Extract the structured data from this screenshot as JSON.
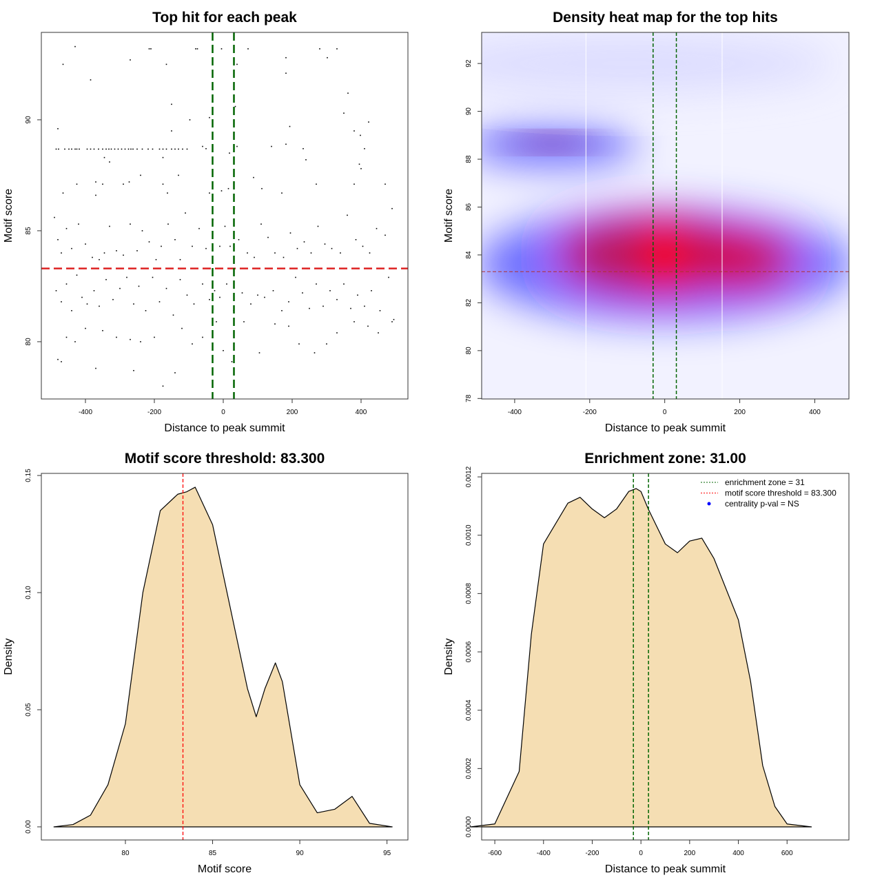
{
  "chart_data": [
    {
      "type": "scatter",
      "title": "Top hit for each peak",
      "xlabel": "Distance to peak summit",
      "ylabel": "Motif score",
      "xlim": [
        -528,
        536
      ],
      "ylim": [
        77.42,
        93.94
      ],
      "xticks": [
        -400,
        -200,
        0,
        200,
        400
      ],
      "yticks": [
        80,
        85,
        90
      ],
      "threshold": 83.3,
      "enrichment_zone": [
        -31,
        31
      ],
      "threshold_color": "#dd2222",
      "zone_color": "#006400",
      "points": [
        [
          -430,
          93.3
        ],
        [
          -215,
          93.2
        ],
        [
          -210,
          93.2
        ],
        [
          -75,
          93.2
        ],
        [
          -80,
          93.2
        ],
        [
          -5,
          93.2
        ],
        [
          72,
          93.2
        ],
        [
          280,
          93.2
        ],
        [
          330,
          93.2
        ],
        [
          -270,
          92.7
        ],
        [
          -465,
          92.5
        ],
        [
          -165,
          92.5
        ],
        [
          40,
          92.5
        ],
        [
          182,
          92.8
        ],
        [
          302,
          92.8
        ],
        [
          182,
          92.1
        ],
        [
          -385,
          91.8
        ],
        [
          362,
          91.2
        ],
        [
          -150,
          90.7
        ],
        [
          350,
          90.3
        ],
        [
          -97,
          90
        ],
        [
          -40,
          90.1
        ],
        [
          35,
          90.6
        ],
        [
          193,
          89.7
        ],
        [
          -480,
          89.6
        ],
        [
          -150,
          89.5
        ],
        [
          380,
          89.5
        ],
        [
          398,
          89.3
        ],
        [
          422,
          89.9
        ],
        [
          182,
          88.9
        ],
        [
          -60,
          88.8
        ],
        [
          -50,
          88.7
        ],
        [
          40,
          88.8
        ],
        [
          140,
          88.8
        ],
        [
          232,
          88.7
        ],
        [
          410,
          88.7
        ],
        [
          -345,
          88.3
        ],
        [
          -330,
          88.1
        ],
        [
          -175,
          88.3
        ],
        [
          18,
          88.5
        ],
        [
          240,
          88.2
        ],
        [
          395,
          88.0
        ],
        [
          400,
          87.8
        ],
        [
          -240,
          87.5
        ],
        [
          -130,
          87.5
        ],
        [
          88,
          87.4
        ],
        [
          -425,
          87.1
        ],
        [
          -370,
          87.2
        ],
        [
          -290,
          87.1
        ],
        [
          -273,
          87.2
        ],
        [
          -175,
          87.1
        ],
        [
          -350,
          87.1
        ],
        [
          270,
          87.1
        ],
        [
          380,
          87.1
        ],
        [
          470,
          87.1
        ],
        [
          112,
          86.9
        ],
        [
          -5,
          86.8
        ],
        [
          15,
          86.9
        ],
        [
          -465,
          86.7
        ],
        [
          -370,
          86.6
        ],
        [
          -162,
          86.7
        ],
        [
          170,
          86.7
        ],
        [
          -40,
          86.7
        ],
        [
          -485,
          88.68
        ],
        [
          -478,
          88.68
        ],
        [
          -460,
          88.68
        ],
        [
          -448,
          88.68
        ],
        [
          -440,
          88.68
        ],
        [
          -430,
          88.68
        ],
        [
          -425,
          88.68
        ],
        [
          -418,
          88.68
        ],
        [
          -395,
          88.68
        ],
        [
          -385,
          88.68
        ],
        [
          -375,
          88.68
        ],
        [
          -362,
          88.68
        ],
        [
          -350,
          88.68
        ],
        [
          -340,
          88.68
        ],
        [
          -332,
          88.68
        ],
        [
          -325,
          88.68
        ],
        [
          -315,
          88.68
        ],
        [
          -305,
          88.68
        ],
        [
          -295,
          88.68
        ],
        [
          -285,
          88.68
        ],
        [
          -275,
          88.68
        ],
        [
          -268,
          88.68
        ],
        [
          -262,
          88.68
        ],
        [
          -250,
          88.68
        ],
        [
          -235,
          88.68
        ],
        [
          -218,
          88.68
        ],
        [
          -205,
          88.68
        ],
        [
          -185,
          88.68
        ],
        [
          -175,
          88.68
        ],
        [
          -165,
          88.68
        ],
        [
          -150,
          88.68
        ],
        [
          -140,
          88.68
        ],
        [
          -130,
          88.68
        ],
        [
          -118,
          88.68
        ],
        [
          -105,
          88.68
        ],
        [
          -490,
          85.6
        ],
        [
          -480,
          84.6
        ],
        [
          -470,
          84.0
        ],
        [
          -455,
          85.1
        ],
        [
          -440,
          84.2
        ],
        [
          -420,
          85.3
        ],
        [
          -400,
          84.4
        ],
        [
          -380,
          83.8
        ],
        [
          -360,
          83.7
        ],
        [
          -345,
          84.0
        ],
        [
          -330,
          85.2
        ],
        [
          -310,
          84.1
        ],
        [
          -290,
          83.9
        ],
        [
          -270,
          85.3
        ],
        [
          -250,
          84.1
        ],
        [
          -235,
          85.0
        ],
        [
          -215,
          84.5
        ],
        [
          -195,
          83.7
        ],
        [
          -180,
          84.3
        ],
        [
          -160,
          85.3
        ],
        [
          -140,
          84.6
        ],
        [
          -125,
          83.7
        ],
        [
          -110,
          85.8
        ],
        [
          -90,
          84.3
        ],
        [
          -70,
          85.1
        ],
        [
          -50,
          84.2
        ],
        [
          -30,
          85.5
        ],
        [
          -10,
          84.3
        ],
        [
          5,
          85.2
        ],
        [
          20,
          84.3
        ],
        [
          45,
          84.6
        ],
        [
          70,
          84.0
        ],
        [
          90,
          83.8
        ],
        [
          110,
          85.3
        ],
        [
          130,
          84.7
        ],
        [
          150,
          84.0
        ],
        [
          175,
          83.8
        ],
        [
          195,
          84.9
        ],
        [
          215,
          84.2
        ],
        [
          235,
          84.5
        ],
        [
          255,
          84.0
        ],
        [
          275,
          85.2
        ],
        [
          295,
          84.4
        ],
        [
          315,
          84.2
        ],
        [
          340,
          84.0
        ],
        [
          360,
          85.7
        ],
        [
          385,
          84.6
        ],
        [
          405,
          84.3
        ],
        [
          425,
          84.0
        ],
        [
          445,
          85.1
        ],
        [
          470,
          84.8
        ],
        [
          490,
          86.0
        ],
        [
          -485,
          82.3
        ],
        [
          -470,
          81.8
        ],
        [
          -455,
          82.6
        ],
        [
          -440,
          81.4
        ],
        [
          -425,
          83.0
        ],
        [
          -410,
          82.0
        ],
        [
          -395,
          81.7
        ],
        [
          -375,
          82.3
        ],
        [
          -360,
          81.6
        ],
        [
          -340,
          82.8
        ],
        [
          -320,
          81.9
        ],
        [
          -300,
          82.4
        ],
        [
          -280,
          82.9
        ],
        [
          -260,
          81.7
        ],
        [
          -245,
          82.5
        ],
        [
          -225,
          81.4
        ],
        [
          -205,
          82.9
        ],
        [
          -185,
          81.8
        ],
        [
          -165,
          82.4
        ],
        [
          -145,
          81.2
        ],
        [
          -125,
          82.8
        ],
        [
          -105,
          82.1
        ],
        [
          -85,
          81.7
        ],
        [
          -60,
          82.6
        ],
        [
          -40,
          81.9
        ],
        [
          -25,
          82.3
        ],
        [
          -10,
          82.0
        ],
        [
          10,
          82.6
        ],
        [
          30,
          81.4
        ],
        [
          55,
          82.2
        ],
        [
          80,
          81.7
        ],
        [
          100,
          82.1
        ],
        [
          120,
          82.0
        ],
        [
          145,
          82.3
        ],
        [
          170,
          81.4
        ],
        [
          190,
          81.8
        ],
        [
          210,
          82.9
        ],
        [
          230,
          82.2
        ],
        [
          250,
          81.5
        ],
        [
          270,
          82.6
        ],
        [
          290,
          81.6
        ],
        [
          310,
          82.3
        ],
        [
          330,
          81.9
        ],
        [
          350,
          82.6
        ],
        [
          370,
          81.5
        ],
        [
          390,
          82.1
        ],
        [
          410,
          81.6
        ],
        [
          430,
          82.3
        ],
        [
          455,
          81.4
        ],
        [
          480,
          82.9
        ],
        [
          495,
          81.0
        ],
        [
          -480,
          79.2
        ],
        [
          -470,
          79.1
        ],
        [
          -455,
          80.2
        ],
        [
          -430,
          80.0
        ],
        [
          -400,
          80.6
        ],
        [
          -370,
          78.8
        ],
        [
          -350,
          80.5
        ],
        [
          -310,
          80.2
        ],
        [
          -270,
          80.1
        ],
        [
          -260,
          78.7
        ],
        [
          -240,
          80.0
        ],
        [
          -200,
          80.2
        ],
        [
          -175,
          78.0
        ],
        [
          -140,
          78.6
        ],
        [
          -120,
          80.6
        ],
        [
          -90,
          79.9
        ],
        [
          -60,
          80.2
        ],
        [
          -20,
          80.9
        ],
        [
          0,
          79.6
        ],
        [
          25,
          79.1
        ],
        [
          60,
          80.9
        ],
        [
          105,
          79.5
        ],
        [
          150,
          80.8
        ],
        [
          190,
          80.7
        ],
        [
          220,
          79.9
        ],
        [
          265,
          79.5
        ],
        [
          300,
          79.9
        ],
        [
          330,
          80.4
        ],
        [
          380,
          80.9
        ],
        [
          420,
          80.7
        ],
        [
          450,
          80.4
        ],
        [
          490,
          80.9
        ]
      ]
    },
    {
      "type": "heatmap",
      "title": "Density heat map for the top hits",
      "xlabel": "Distance to peak summit",
      "ylabel": "Motif score",
      "xlim": [
        -488,
        491
      ],
      "ylim": [
        77.98,
        93.3
      ],
      "xticks": [
        -400,
        -200,
        0,
        200,
        400
      ],
      "yticks": [
        78,
        80,
        82,
        84,
        86,
        88,
        90,
        92
      ],
      "threshold": 83.3,
      "enrichment_zone": [
        -31,
        31
      ],
      "quantile_lines": [
        -210,
        153
      ],
      "density_components": [
        {
          "x": -300,
          "y": 88.6,
          "sx": 230,
          "sy": 0.9,
          "level": 0.55
        },
        {
          "x": 0,
          "y": 83.6,
          "sx": 500,
          "sy": 2.4,
          "level": 0.55
        },
        {
          "x": -20,
          "y": 84,
          "sx": 260,
          "sy": 1.6,
          "level": 0.8
        },
        {
          "x": 220,
          "y": 83.8,
          "sx": 120,
          "sy": 1.2,
          "level": 0.75
        },
        {
          "x": 0,
          "y": 84,
          "sx": 60,
          "sy": 1.2,
          "level": 1.0
        }
      ]
    },
    {
      "type": "area",
      "title": "Motif score threshold: 83.300",
      "xlabel": "Motif score",
      "ylabel": "Density",
      "xlim": [
        75.18,
        96.2
      ],
      "ylim": [
        -0.0056,
        0.1509
      ],
      "xticks": [
        80,
        85,
        90,
        95
      ],
      "yticks": [
        "0.00",
        "0.05",
        "0.10",
        "0.15"
      ],
      "threshold": 83.3,
      "fill": "#f5deb3",
      "x": [
        75.9,
        77,
        78,
        79,
        80,
        81,
        82,
        83,
        83.5,
        84,
        85,
        86,
        87,
        87.5,
        88,
        88.6,
        89,
        90,
        91,
        92,
        93,
        94,
        95.3
      ],
      "y": [
        0,
        0.001,
        0.005,
        0.018,
        0.044,
        0.1,
        0.135,
        0.142,
        0.143,
        0.145,
        0.129,
        0.094,
        0.059,
        0.047,
        0.059,
        0.07,
        0.062,
        0.018,
        0.006,
        0.0075,
        0.013,
        0.0015,
        0
      ]
    },
    {
      "type": "area",
      "title": "Enrichment zone: 31.00",
      "xlabel": "Distance to peak summit",
      "ylabel": "Density",
      "xlim": [
        -654,
        854
      ],
      "ylim": [
        -4.49e-05,
        0.001212
      ],
      "xticks": [
        -600,
        -400,
        -200,
        0,
        200,
        400,
        600
      ],
      "yticks": [
        "0.0000",
        "0.0002",
        "0.0004",
        "0.0006",
        "0.0008",
        "0.0010",
        "0.0012"
      ],
      "enrichment_zone": [
        -31,
        31
      ],
      "fill": "#f5deb3",
      "x": [
        -700,
        -600,
        -500,
        -450,
        -400,
        -300,
        -250,
        -200,
        -150,
        -100,
        -50,
        -20,
        0,
        30,
        100,
        150,
        200,
        250,
        300,
        400,
        450,
        500,
        550,
        600,
        700
      ],
      "y": [
        0,
        1e-05,
        0.00019,
        0.00066,
        0.00097,
        0.00111,
        0.00113,
        0.00109,
        0.00106,
        0.00109,
        0.00115,
        0.00116,
        0.00115,
        0.00109,
        0.00097,
        0.00094,
        0.00098,
        0.00099,
        0.00092,
        0.00071,
        0.0005,
        0.00021,
        7e-05,
        1e-05,
        0
      ],
      "legend": {
        "position": "top-right",
        "items": [
          {
            "label": "enrichment zone = 31",
            "color": "#006400",
            "style": "dotted"
          },
          {
            "label": "motif score threshold = 83.300",
            "color": "#ff0000",
            "style": "dotted"
          },
          {
            "label": "centrality p-val = NS",
            "color": "#0000ff",
            "style": "point"
          }
        ]
      }
    }
  ]
}
